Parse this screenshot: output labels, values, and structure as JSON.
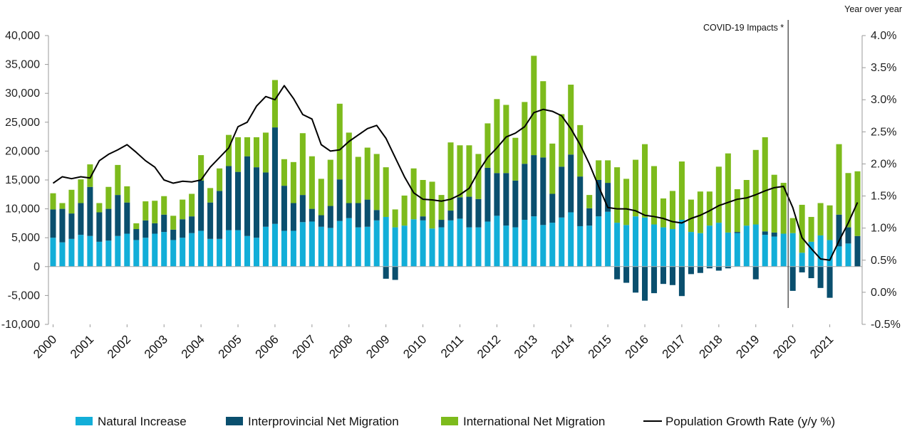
{
  "chart_data": {
    "type": "bar",
    "stacked": true,
    "annotation": "COVID-19 Impacts *",
    "annotation_at_x": 2020,
    "x": [
      2000,
      2000.25,
      2000.5,
      2000.75,
      2001,
      2001.25,
      2001.5,
      2001.75,
      2002,
      2002.25,
      2002.5,
      2002.75,
      2003,
      2003.25,
      2003.5,
      2003.75,
      2004,
      2004.25,
      2004.5,
      2004.75,
      2005,
      2005.25,
      2005.5,
      2005.75,
      2006,
      2006.25,
      2006.5,
      2006.75,
      2007,
      2007.25,
      2007.5,
      2007.75,
      2008,
      2008.25,
      2008.5,
      2008.75,
      2009,
      2009.25,
      2009.5,
      2009.75,
      2010,
      2010.25,
      2010.5,
      2010.75,
      2011,
      2011.25,
      2011.5,
      2011.75,
      2012,
      2012.25,
      2012.5,
      2012.75,
      2013,
      2013.25,
      2013.5,
      2013.75,
      2014,
      2014.25,
      2014.5,
      2014.75,
      2015,
      2015.25,
      2015.5,
      2015.75,
      2016,
      2016.25,
      2016.5,
      2016.75,
      2017,
      2017.25,
      2017.5,
      2017.75,
      2018,
      2018.25,
      2018.5,
      2018.75,
      2019,
      2019.25,
      2019.5,
      2019.75,
      2020,
      2020.25,
      2020.5,
      2020.75,
      2021,
      2021.25,
      2021.5,
      2021.75
    ],
    "x_tick_labels": [
      "2000",
      "2001",
      "2002",
      "2003",
      "2004",
      "2005",
      "2006",
      "2007",
      "2008",
      "2009",
      "2010",
      "2011",
      "2012",
      "2013",
      "2014",
      "2015",
      "2016",
      "2017",
      "2018",
      "2019",
      "2020",
      "2021"
    ],
    "y_left": {
      "range": [
        -10000,
        40000
      ],
      "ticks": [
        -10000,
        -5000,
        0,
        5000,
        10000,
        15000,
        20000,
        25000,
        30000,
        35000,
        40000
      ],
      "tick_labels": [
        "-10,000",
        "-5,000",
        "0",
        "5,000",
        "10,000",
        "15,000",
        "20,000",
        "25,000",
        "30,000",
        "35,000",
        "40,000"
      ]
    },
    "y_right": {
      "label": "Year over year",
      "range": [
        -0.5,
        4.0
      ],
      "ticks": [
        -0.5,
        0.0,
        0.5,
        1.0,
        1.5,
        2.0,
        2.5,
        3.0,
        3.5,
        4.0
      ],
      "tick_labels": [
        "-0.5%",
        "0.0%",
        "0.5%",
        "1.0%",
        "1.5%",
        "2.0%",
        "2.5%",
        "3.0%",
        "3.5%",
        "4.0%"
      ]
    },
    "legend_position": "bottom",
    "series": [
      {
        "name": "Natural Increase",
        "kind": "bar",
        "axis": "left",
        "color": "#12aed8",
        "values": [
          5000,
          4200,
          4800,
          5500,
          5300,
          4300,
          4500,
          5300,
          5700,
          4600,
          5000,
          5700,
          6000,
          4600,
          5000,
          5800,
          6200,
          4800,
          4800,
          6300,
          6300,
          5300,
          5000,
          6900,
          7400,
          6200,
          6200,
          7700,
          7800,
          6900,
          6700,
          7900,
          8400,
          6800,
          6900,
          8000,
          8600,
          6800,
          7100,
          8200,
          8000,
          6600,
          6800,
          8000,
          8300,
          6800,
          6800,
          7800,
          8800,
          7100,
          6800,
          8100,
          8700,
          7200,
          7600,
          8500,
          9400,
          7000,
          7100,
          8700,
          9500,
          7600,
          7200,
          8700,
          8500,
          7300,
          6800,
          6500,
          8100,
          6000,
          5800,
          7100,
          7600,
          5900,
          5800,
          7100,
          7300,
          5500,
          5200,
          5700,
          5800,
          2400,
          4300,
          5400,
          4600,
          3500,
          4000,
          0
        ]
      },
      {
        "name": "Interprovincial Net Migration",
        "kind": "bar",
        "axis": "left",
        "color": "#0a4f6e",
        "values": [
          4900,
          5800,
          4400,
          5500,
          8500,
          5100,
          5500,
          7100,
          5400,
          1900,
          3000,
          1800,
          3000,
          1800,
          3200,
          2900,
          8700,
          6300,
          8300,
          11100,
          10100,
          13800,
          12200,
          9400,
          16700,
          7800,
          4800,
          4700,
          2200,
          2000,
          3800,
          7200,
          2600,
          4200,
          4700,
          1800,
          -2100,
          -2300,
          0,
          0,
          700,
          0,
          1300,
          1700,
          3700,
          5300,
          4900,
          9300,
          7400,
          9100,
          8100,
          9700,
          10600,
          11700,
          5000,
          8800,
          10000,
          8600,
          3000,
          6300,
          5000,
          -2200,
          -2800,
          -4500,
          -5900,
          -4600,
          -3000,
          -3200,
          -5100,
          -1300,
          -1100,
          -300,
          -700,
          -300,
          200,
          0,
          -2200,
          600,
          700,
          0,
          -4200,
          -1000,
          -2000,
          -3700,
          -5400,
          5500,
          2800,
          5300
        ]
      },
      {
        "name": "International Net Migration",
        "kind": "bar",
        "axis": "left",
        "color": "#7dbb1c",
        "values": [
          2800,
          1000,
          4100,
          4100,
          3900,
          1600,
          3800,
          5200,
          2800,
          1000,
          3300,
          3900,
          3200,
          2400,
          3400,
          3900,
          4400,
          2500,
          3900,
          5400,
          6000,
          3300,
          5200,
          6900,
          8200,
          4600,
          7100,
          10700,
          9100,
          6300,
          8000,
          13100,
          12200,
          8000,
          9000,
          9700,
          8600,
          3100,
          5200,
          8800,
          6300,
          8100,
          4300,
          11800,
          9000,
          8900,
          7800,
          7700,
          12800,
          11800,
          7400,
          10700,
          17200,
          13200,
          8700,
          9100,
          12100,
          8900,
          2300,
          3400,
          3900,
          9600,
          8000,
          9800,
          12700,
          10100,
          5000,
          6600,
          10100,
          5600,
          7200,
          5900,
          9700,
          13700,
          7400,
          7900,
          12900,
          16300,
          10000,
          8800,
          2600,
          8300,
          4300,
          5600,
          6000,
          12200,
          9400,
          11200
        ]
      },
      {
        "name": "Population Growth Rate (y/y %)",
        "kind": "line",
        "axis": "right",
        "color": "#000000",
        "values": [
          1.7,
          1.8,
          1.77,
          1.8,
          1.78,
          2.05,
          2.15,
          2.22,
          2.3,
          2.18,
          2.05,
          1.95,
          1.75,
          1.7,
          1.73,
          1.72,
          1.75,
          1.95,
          2.1,
          2.25,
          2.58,
          2.65,
          2.9,
          3.05,
          3.0,
          3.22,
          3.02,
          2.77,
          2.7,
          2.3,
          2.2,
          2.22,
          2.35,
          2.45,
          2.55,
          2.6,
          2.4,
          2.1,
          1.8,
          1.55,
          1.45,
          1.44,
          1.42,
          1.45,
          1.52,
          1.62,
          1.88,
          2.1,
          2.25,
          2.42,
          2.48,
          2.58,
          2.8,
          2.85,
          2.82,
          2.75,
          2.55,
          2.3,
          2.0,
          1.65,
          1.32,
          1.3,
          1.3,
          1.27,
          1.2,
          1.18,
          1.15,
          1.1,
          1.08,
          1.15,
          1.2,
          1.27,
          1.35,
          1.4,
          1.45,
          1.47,
          1.52,
          1.58,
          1.63,
          1.65,
          1.32,
          0.85,
          0.68,
          0.52,
          0.5,
          0.8,
          1.08,
          1.4
        ]
      }
    ]
  }
}
